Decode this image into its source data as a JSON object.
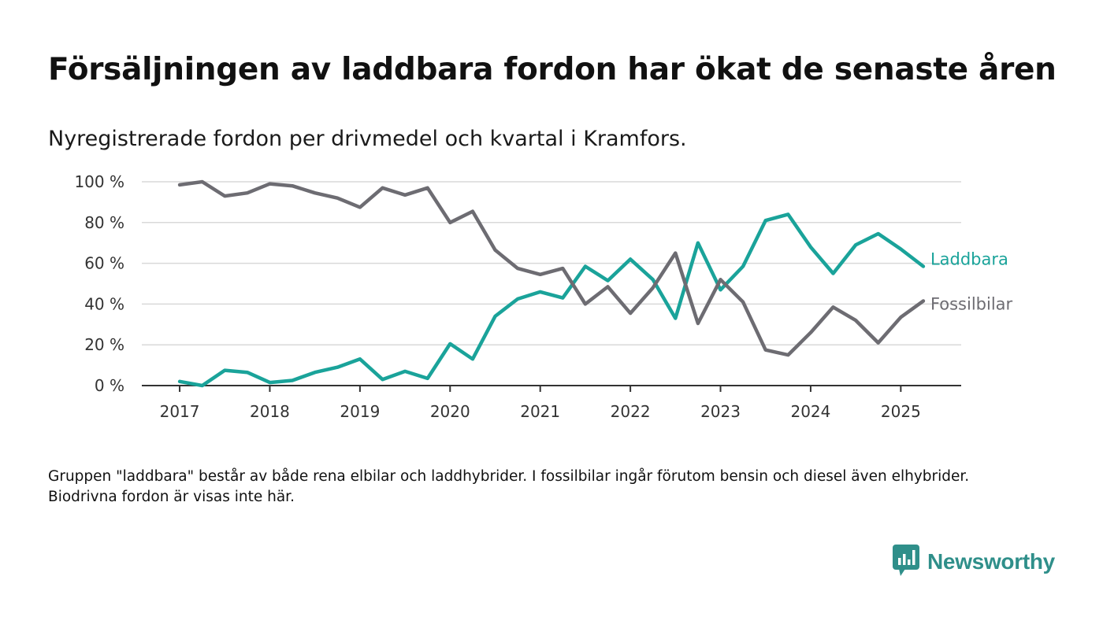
{
  "title": "Försäljningen av laddbara fordon har ökat de senaste åren",
  "subtitle": "Nyregistrerade fordon per drivmedel och kvartal i Kramfors.",
  "footnote": "Gruppen \"laddbara\" består av både rena elbilar och laddhybrider. I fossilbilar ingår förutom bensin och diesel även elhybrider. Biodrivna fordon är visas inte här.",
  "brand": {
    "name": "Newsworthy",
    "icon": "newsworthy-logo-icon",
    "color": "#2f8f8a"
  },
  "chart_data": {
    "type": "line",
    "xlim": [
      2016.58,
      2025.67
    ],
    "ylim": [
      0,
      100
    ],
    "grid": true,
    "x_ticks": [
      2017,
      2018,
      2019,
      2020,
      2021,
      2022,
      2023,
      2024,
      2025
    ],
    "x_tick_labels": [
      "2017",
      "2018",
      "2019",
      "2020",
      "2021",
      "2022",
      "2023",
      "2024",
      "2025"
    ],
    "y_ticks": [
      0,
      20,
      40,
      60,
      80,
      100
    ],
    "y_tick_labels": [
      "0 %",
      "20 %",
      "40 %",
      "60 %",
      "80 %",
      "100 %"
    ],
    "x": [
      2017.0,
      2017.25,
      2017.5,
      2017.75,
      2018.0,
      2018.25,
      2018.5,
      2018.75,
      2019.0,
      2019.25,
      2019.5,
      2019.75,
      2020.0,
      2020.25,
      2020.5,
      2020.75,
      2021.0,
      2021.25,
      2021.5,
      2021.75,
      2022.0,
      2022.25,
      2022.5,
      2022.75,
      2023.0,
      2023.25,
      2023.5,
      2023.75,
      2024.0,
      2024.25,
      2024.5,
      2024.75,
      2025.0,
      2025.25
    ],
    "series": [
      {
        "name": "Laddbara",
        "color": "#1aa39a",
        "values": [
          2,
          0,
          7.5,
          6.5,
          1.5,
          2.5,
          6.5,
          9,
          13,
          3,
          7,
          3.5,
          20.5,
          13,
          34,
          42.5,
          46,
          43,
          58.5,
          51.5,
          62,
          52,
          33,
          70,
          47,
          58.5,
          81,
          84,
          68,
          55,
          69,
          74.5,
          67,
          58.5
        ]
      },
      {
        "name": "Fossilbilar",
        "color": "#6d6c72",
        "values": [
          98.5,
          100,
          93,
          94.5,
          99,
          98,
          94.5,
          92,
          87.5,
          97,
          93.5,
          97,
          80,
          85.5,
          66.5,
          57.5,
          54.5,
          57.5,
          40,
          48.5,
          35.5,
          48,
          65,
          30.5,
          52,
          41,
          17.5,
          15,
          26,
          38.5,
          32,
          21,
          33.5,
          41.5
        ]
      }
    ]
  }
}
